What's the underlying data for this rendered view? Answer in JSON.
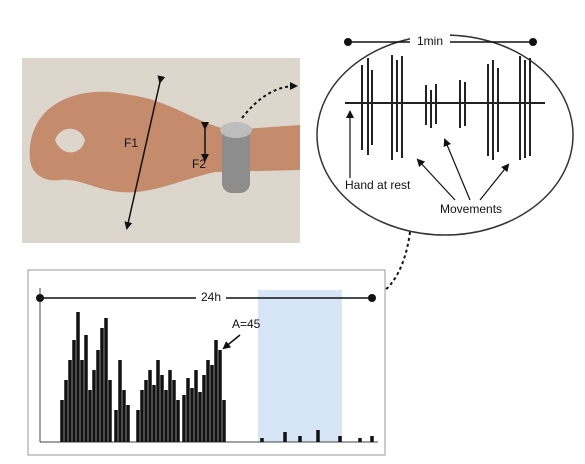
{
  "photo": {
    "f1": "F1",
    "f2": "F2"
  },
  "zoom": {
    "duration": "1min",
    "hand_at_rest": "Hand at rest",
    "movements": "Movements"
  },
  "chart": {
    "duration": "24h",
    "amplitude": "A=45"
  }
}
